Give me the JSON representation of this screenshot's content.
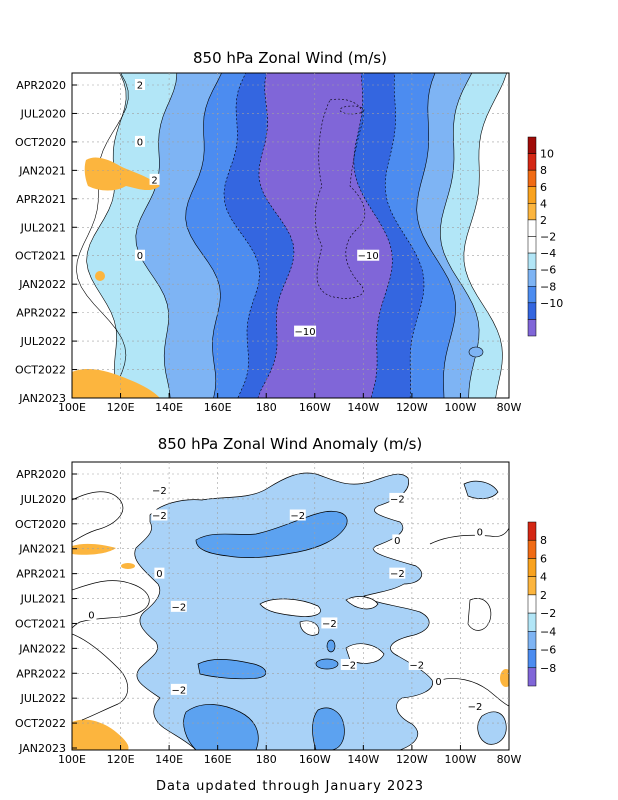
{
  "footer": "Data updated through January 2023",
  "colors": {
    "c12": "#d8d8f0",
    "c10": "#8066d8",
    "c8": "#3466e0",
    "c6": "#4c8cf0",
    "c4": "#7eb4f4",
    "c2": "#b2e6f7",
    "zero": "#ffffff",
    "p2": "#ffffff",
    "p4": "#fcb53e",
    "p6": "#f9a21e",
    "p8": "#f06a14",
    "p10": "#d42714",
    "p12": "#a00b08"
  },
  "chart_data": [
    {
      "type": "heatmap",
      "title": "850 hPa Zonal Wind (m/s)",
      "x_tick_labels": [
        "100E",
        "120E",
        "140E",
        "160E",
        "180",
        "160W",
        "140W",
        "120W",
        "100W",
        "80W"
      ],
      "y_tick_labels": [
        "APR2020",
        "JUL2020",
        "OCT2020",
        "JAN2021",
        "APR2021",
        "JUL2021",
        "OCT2021",
        "JAN2022",
        "APR2022",
        "JUL2022",
        "OCT2022",
        "JAN2023"
      ],
      "y_ticks_months": [
        "2020-04",
        "2020-07",
        "2020-10",
        "2021-01",
        "2021-04",
        "2021-07",
        "2021-10",
        "2022-01",
        "2022-04",
        "2022-07",
        "2022-10",
        "2023-01"
      ],
      "colorbar_labels": [
        "10",
        "8",
        "6",
        "4",
        "2",
        "−2",
        "−4",
        "−6",
        "−8",
        "−10"
      ],
      "contour_labels": [
        {
          "text": "2",
          "lon": 128,
          "month": "2020-04"
        },
        {
          "text": "0",
          "lon": 128,
          "month": "2020-10"
        },
        {
          "text": "2",
          "lon": 134,
          "month": "2021-02"
        },
        {
          "text": "0",
          "lon": 128,
          "month": "2021-10"
        },
        {
          "text": "−10",
          "lon": 222,
          "month": "2021-10"
        },
        {
          "text": "−10",
          "lon": 196,
          "month": "2022-06"
        }
      ],
      "profile_lon": [
        100,
        110,
        120,
        130,
        140,
        150,
        160,
        170,
        180,
        190,
        200,
        210,
        220,
        230,
        240,
        250,
        260,
        270,
        280
      ],
      "profile_u": [
        -0.5,
        -1.5,
        -2.5,
        -3.5,
        -4.5,
        -5.5,
        -6.5,
        -8,
        -9.5,
        -11,
        -12,
        -11.5,
        -10.5,
        -9,
        -7.5,
        -6,
        -4,
        -2,
        -1
      ]
    },
    {
      "type": "heatmap",
      "title": "850 hPa Zonal Wind Anomaly (m/s)",
      "x_tick_labels": [
        "100E",
        "120E",
        "140E",
        "160E",
        "180",
        "160W",
        "140W",
        "120W",
        "100W",
        "80W"
      ],
      "y_tick_labels": [
        "APR2020",
        "JUL2020",
        "OCT2020",
        "JAN2021",
        "APR2021",
        "JUL2021",
        "OCT2021",
        "JAN2022",
        "APR2022",
        "JUL2022",
        "OCT2022",
        "JAN2023"
      ],
      "y_ticks_months": [
        "2020-04",
        "2020-07",
        "2020-10",
        "2021-01",
        "2021-04",
        "2021-07",
        "2021-10",
        "2022-01",
        "2022-04",
        "2022-07",
        "2022-10",
        "2023-01"
      ],
      "colorbar_labels": [
        "8",
        "6",
        "4",
        "2",
        "−2",
        "−4",
        "−6",
        "−8"
      ],
      "contour_labels": [
        {
          "text": "−2",
          "lon": 136,
          "month": "2020-06"
        },
        {
          "text": "−2",
          "lon": 136,
          "month": "2020-09"
        },
        {
          "text": "−2",
          "lon": 234,
          "month": "2020-07"
        },
        {
          "text": "−2",
          "lon": 193,
          "month": "2020-09"
        },
        {
          "text": "0",
          "lon": 234,
          "month": "2020-12"
        },
        {
          "text": "0",
          "lon": 268,
          "month": "2020-11"
        },
        {
          "text": "−2",
          "lon": 234,
          "month": "2021-04"
        },
        {
          "text": "0",
          "lon": 136,
          "month": "2021-04"
        },
        {
          "text": "−2",
          "lon": 144,
          "month": "2021-08"
        },
        {
          "text": "0",
          "lon": 108,
          "month": "2021-09"
        },
        {
          "text": "−2",
          "lon": 206,
          "month": "2021-10"
        },
        {
          "text": "−2",
          "lon": 214,
          "month": "2022-03"
        },
        {
          "text": "−2",
          "lon": 242,
          "month": "2022-03"
        },
        {
          "text": "0",
          "lon": 251,
          "month": "2022-05"
        },
        {
          "text": "−2",
          "lon": 144,
          "month": "2022-06"
        },
        {
          "text": "−2",
          "lon": 266,
          "month": "2022-08"
        }
      ]
    }
  ]
}
